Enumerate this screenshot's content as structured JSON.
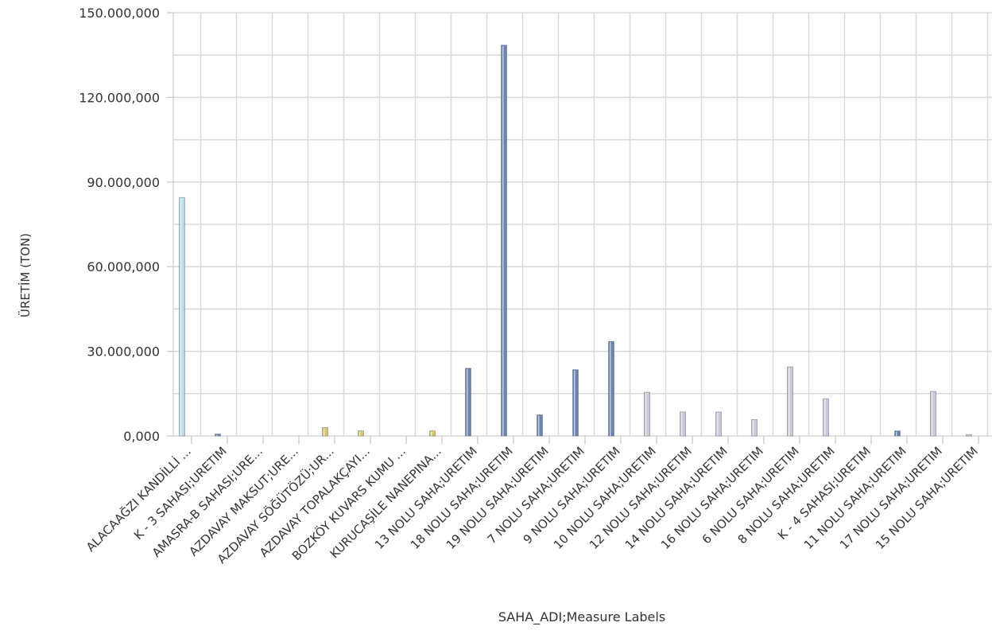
{
  "chart_data": {
    "type": "bar",
    "xlabel": "SAHA_ADI;Measure Labels",
    "ylabel": "ÜRETİM (TON)",
    "ylim": [
      0,
      150000000
    ],
    "y_ticks": [
      0,
      30000000,
      60000000,
      90000000,
      120000000,
      150000000
    ],
    "y_tick_labels": [
      "0,000",
      "30.000,000",
      "60.000,000",
      "90.000,000",
      "120.000,000",
      "150.000,000"
    ],
    "grid": true,
    "legend": "none",
    "categories": [
      "ALACAAĞZI KANDİLLİ ...",
      "K - 3 SAHASI;URETIM",
      "AMASRA-B SAHASI;URE...",
      "AZDAVAY MAKSUT;URE...",
      "AZDAVAY SÖĞÜTÖZÜ;UR...",
      "AZDAVAY TOPALAKÇAYI...",
      "BOZKÖY KUVARS KUMU ...",
      "KURUCAŞİLE NANEPINA...",
      "13 NOLU SAHA;URETIM",
      "18 NOLU SAHA;URETIM",
      "19 NOLU SAHA;URETIM",
      "7 NOLU SAHA;URETIM",
      "9 NOLU SAHA;URETIM",
      "10 NOLU SAHA;URETIM",
      "12 NOLU SAHA;URETIM",
      "14 NOLU SAHA;URETIM",
      "16 NOLU SAHA;URETIM",
      "6 NOLU SAHA;URETIM",
      "8 NOLU SAHA;URETIM",
      "K - 4 SAHASI;URETIM",
      "11 NOLU SAHA;URETIM",
      "17 NOLU SAHA;URETIM",
      "15 NOLU SAHA;URETIM"
    ],
    "values": [
      84500000,
      700000,
      0,
      0,
      3000000,
      1800000,
      0,
      1800000,
      24000000,
      138500000,
      7500000,
      23500000,
      33500000,
      15500000,
      8500000,
      8500000,
      5800000,
      24500000,
      13200000,
      0,
      1800000,
      15800000,
      500000
    ],
    "colors": {
      "light_blue": "#b7dbe8",
      "steel_blue": "#6b84ad",
      "gold": "#d6c56a",
      "lavender": "#c9c8d8",
      "grid": "#d9d9d9",
      "axis_text": "#333333"
    },
    "bar_colors": [
      "light_blue",
      "steel_blue",
      "gold",
      "gold",
      "gold",
      "gold",
      "gold",
      "gold",
      "steel_blue",
      "steel_blue",
      "steel_blue",
      "steel_blue",
      "steel_blue",
      "lavender",
      "lavender",
      "lavender",
      "lavender",
      "lavender",
      "lavender",
      "lavender",
      "steel_blue",
      "lavender",
      "lavender"
    ]
  }
}
